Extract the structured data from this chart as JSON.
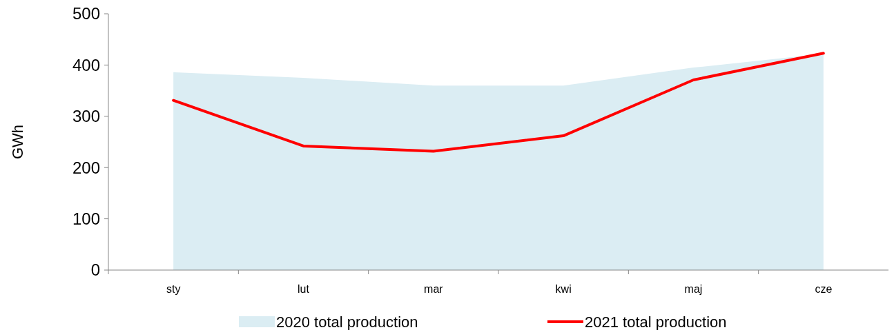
{
  "chart_data": {
    "type": "area",
    "ylabel": "GWh",
    "categories": [
      "sty",
      "lut",
      "mar",
      "kwi",
      "maj",
      "cze"
    ],
    "ylim": [
      0,
      500
    ],
    "yticks": [
      0,
      100,
      200,
      300,
      400,
      500
    ],
    "legend": "bottom",
    "grid": false,
    "series": [
      {
        "name": "2020 total production",
        "color": "#dbedf3",
        "values": [
          386,
          375,
          360,
          360,
          395,
          422
        ]
      },
      {
        "name": "2021 total production",
        "type": "line",
        "color": "#ff0000",
        "values": [
          331,
          242,
          232,
          262,
          371,
          423
        ]
      }
    ]
  }
}
